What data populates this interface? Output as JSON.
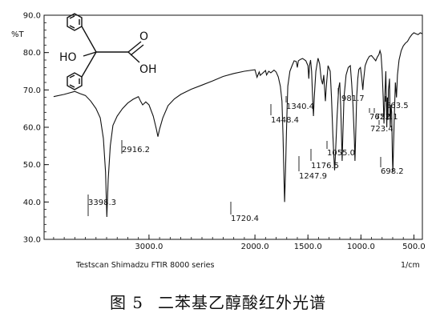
{
  "chart_data": {
    "type": "line",
    "instrument_label": "Testscan Shimadzu FTIR 8000 series",
    "ylabel": "%T",
    "xunit": "1/cm",
    "xlim": [
      4000,
      400
    ],
    "ylim": [
      30.0,
      90.0
    ],
    "x_ticks": [
      {
        "v": 3000,
        "t": "3000.0"
      },
      {
        "v": 2000,
        "t": "2000.0"
      },
      {
        "v": 1500,
        "t": "1500.0"
      },
      {
        "v": 1000,
        "t": "1000.0"
      },
      {
        "v": 500,
        "t": "500.0"
      }
    ],
    "y_ticks": [
      {
        "v": 30,
        "t": "30.0"
      },
      {
        "v": 40,
        "t": "40.0"
      },
      {
        "v": 50,
        "t": "50.0"
      },
      {
        "v": 60,
        "t": "60.0"
      },
      {
        "v": 70,
        "t": "70.0"
      },
      {
        "v": 80,
        "t": "80.0"
      },
      {
        "v": 90,
        "t": "90.0"
      }
    ],
    "series": [
      {
        "points": [
          [
            4000,
            67.2
          ],
          [
            3900,
            68.2
          ],
          [
            3800,
            68.8
          ],
          [
            3700,
            69.6
          ],
          [
            3650,
            69.0
          ],
          [
            3600,
            68.5
          ],
          [
            3550,
            67.0
          ],
          [
            3500,
            65.0
          ],
          [
            3460,
            62.5
          ],
          [
            3430,
            57.0
          ],
          [
            3410,
            48.0
          ],
          [
            3398,
            36.0
          ],
          [
            3385,
            46.0
          ],
          [
            3365,
            55.0
          ],
          [
            3340,
            60.5
          ],
          [
            3300,
            63.0
          ],
          [
            3250,
            65.0
          ],
          [
            3200,
            66.5
          ],
          [
            3150,
            67.5
          ],
          [
            3100,
            68.2
          ],
          [
            3080,
            67.0
          ],
          [
            3060,
            66.0
          ],
          [
            3030,
            66.8
          ],
          [
            3000,
            66.0
          ],
          [
            2960,
            63.0
          ],
          [
            2930,
            59.5
          ],
          [
            2916,
            57.5
          ],
          [
            2900,
            59.5
          ],
          [
            2870,
            62.5
          ],
          [
            2820,
            65.8
          ],
          [
            2760,
            67.6
          ],
          [
            2700,
            68.8
          ],
          [
            2600,
            70.2
          ],
          [
            2500,
            71.3
          ],
          [
            2400,
            72.4
          ],
          [
            2300,
            73.6
          ],
          [
            2200,
            74.4
          ],
          [
            2100,
            75.0
          ],
          [
            2000,
            75.4
          ],
          [
            1980,
            73.4
          ],
          [
            1960,
            74.8
          ],
          [
            1950,
            73.9
          ],
          [
            1900,
            75.2
          ],
          [
            1890,
            74.0
          ],
          [
            1870,
            75.0
          ],
          [
            1850,
            74.6
          ],
          [
            1820,
            75.3
          ],
          [
            1800,
            74.8
          ],
          [
            1780,
            73.5
          ],
          [
            1760,
            71.0
          ],
          [
            1745,
            67.0
          ],
          [
            1735,
            58.0
          ],
          [
            1725,
            45.0
          ],
          [
            1720,
            40.0
          ],
          [
            1712,
            48.0
          ],
          [
            1700,
            62.0
          ],
          [
            1690,
            71.0
          ],
          [
            1670,
            75.0
          ],
          [
            1650,
            76.5
          ],
          [
            1630,
            77.8
          ],
          [
            1610,
            77.6
          ],
          [
            1600,
            76.0
          ],
          [
            1590,
            77.8
          ],
          [
            1570,
            78.2
          ],
          [
            1550,
            78.4
          ],
          [
            1520,
            77.8
          ],
          [
            1500,
            76.5
          ],
          [
            1492,
            73.0
          ],
          [
            1485,
            76.5
          ],
          [
            1475,
            78.0
          ],
          [
            1465,
            75.0
          ],
          [
            1455,
            67.0
          ],
          [
            1448,
            63.0
          ],
          [
            1440,
            68.0
          ],
          [
            1425,
            75.0
          ],
          [
            1405,
            78.5
          ],
          [
            1390,
            77.0
          ],
          [
            1375,
            73.0
          ],
          [
            1362,
            71.5
          ],
          [
            1350,
            74.0
          ],
          [
            1340,
            69.0
          ],
          [
            1335,
            67.0
          ],
          [
            1328,
            70.5
          ],
          [
            1310,
            76.5
          ],
          [
            1290,
            75.0
          ],
          [
            1278,
            68.0
          ],
          [
            1265,
            58.0
          ],
          [
            1255,
            52.0
          ],
          [
            1248,
            48.5
          ],
          [
            1240,
            53.0
          ],
          [
            1225,
            63.0
          ],
          [
            1210,
            70.5
          ],
          [
            1200,
            72.0
          ],
          [
            1190,
            65.0
          ],
          [
            1182,
            56.0
          ],
          [
            1177,
            51.0
          ],
          [
            1170,
            58.0
          ],
          [
            1160,
            68.0
          ],
          [
            1140,
            74.0
          ],
          [
            1120,
            76.0
          ],
          [
            1100,
            76.5
          ],
          [
            1088,
            72.0
          ],
          [
            1075,
            66.0
          ],
          [
            1062,
            57.0
          ],
          [
            1056,
            51.0
          ],
          [
            1050,
            57.0
          ],
          [
            1040,
            68.0
          ],
          [
            1030,
            73.0
          ],
          [
            1020,
            75.5
          ],
          [
            1005,
            76.0
          ],
          [
            992,
            73.0
          ],
          [
            982,
            70.0
          ],
          [
            975,
            72.5
          ],
          [
            960,
            76.5
          ],
          [
            940,
            78.0
          ],
          [
            920,
            79.0
          ],
          [
            900,
            79.2
          ],
          [
            880,
            78.5
          ],
          [
            860,
            77.8
          ],
          [
            845,
            78.8
          ],
          [
            830,
            79.5
          ],
          [
            820,
            80.5
          ],
          [
            810,
            79.5
          ],
          [
            800,
            75.0
          ],
          [
            790,
            68.0
          ],
          [
            782,
            61.0
          ],
          [
            775,
            68.0
          ],
          [
            765,
            75.0
          ],
          [
            760,
            68.0
          ],
          [
            756,
            60.0
          ],
          [
            750,
            68.0
          ],
          [
            745,
            62.0
          ],
          [
            740,
            70.0
          ],
          [
            730,
            73.0
          ],
          [
            723,
            60.0
          ],
          [
            716,
            66.0
          ],
          [
            710,
            64.0
          ],
          [
            703,
            52.0
          ],
          [
            698,
            48.0
          ],
          [
            692,
            55.0
          ],
          [
            685,
            63.0
          ],
          [
            675,
            72.0
          ],
          [
            664,
            68.0
          ],
          [
            655,
            74.0
          ],
          [
            640,
            78.0
          ],
          [
            620,
            80.5
          ],
          [
            600,
            81.8
          ],
          [
            580,
            82.5
          ],
          [
            560,
            83.0
          ],
          [
            540,
            84.0
          ],
          [
            520,
            84.8
          ],
          [
            500,
            85.3
          ],
          [
            480,
            85.0
          ],
          [
            460,
            84.8
          ],
          [
            440,
            85.3
          ],
          [
            420,
            85.0
          ],
          [
            400,
            84.5
          ]
        ]
      }
    ],
    "peak_labels": [
      {
        "text": "3398.3"
      },
      {
        "text": "2916.2"
      },
      {
        "text": "1720.4"
      },
      {
        "text": "1448.4"
      },
      {
        "text": "1340.4"
      },
      {
        "text": "1247.9"
      },
      {
        "text": "1176.5"
      },
      {
        "text": "1055.0"
      },
      {
        "text": "981.7"
      },
      {
        "text": "762.1"
      },
      {
        "text": "752.1"
      },
      {
        "text": "723.4"
      },
      {
        "text": "698.2"
      },
      {
        "text": "663.5"
      }
    ],
    "structure_labels": {
      "oh_left": "HO",
      "o_top": "O",
      "oh_right": "OH"
    }
  },
  "caption": {
    "figure_number": "图 5",
    "title": "二苯基乙醇酸红外光谱"
  }
}
